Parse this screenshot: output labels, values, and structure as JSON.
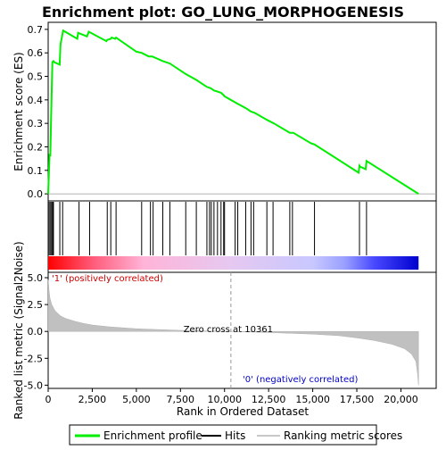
{
  "chart_data": {
    "type": "line",
    "title": "Enrichment plot: GO_LUNG_MORPHOGENESIS",
    "top_panel": {
      "ylabel": "Enrichment score (ES)",
      "ylim": [
        -0.03,
        0.73
      ],
      "yticks": [
        0.0,
        0.1,
        0.2,
        0.3,
        0.4,
        0.5,
        0.6,
        0.7
      ],
      "ytick_labels": [
        "0.0",
        "0.1",
        "0.2",
        "0.3",
        "0.4",
        "0.5",
        "0.6",
        "0.7"
      ],
      "series": [
        {
          "name": "Enrichment profile",
          "color": "#00ee00",
          "x": [
            0,
            80,
            120,
            160,
            200,
            240,
            300,
            350,
            650,
            700,
            850,
            1650,
            1700,
            2200,
            2300,
            3300,
            3350,
            3550,
            3600,
            3800,
            3850,
            5000,
            5300,
            5700,
            5900,
            6500,
            6900,
            7800,
            8400,
            9000,
            9200,
            9400,
            9600,
            9800,
            9950,
            10000,
            10700,
            11200,
            11500,
            11700,
            12400,
            12800,
            13700,
            13900,
            14900,
            15100,
            17600,
            17650,
            17700,
            18000,
            18050,
            21000
          ],
          "y": [
            0.0,
            0.17,
            0.16,
            0.31,
            0.44,
            0.56,
            0.565,
            0.56,
            0.55,
            0.635,
            0.695,
            0.66,
            0.685,
            0.67,
            0.69,
            0.65,
            0.655,
            0.66,
            0.665,
            0.66,
            0.665,
            0.605,
            0.6,
            0.585,
            0.585,
            0.565,
            0.555,
            0.51,
            0.485,
            0.455,
            0.45,
            0.44,
            0.435,
            0.43,
            0.42,
            0.415,
            0.385,
            0.365,
            0.35,
            0.345,
            0.315,
            0.3,
            0.26,
            0.26,
            0.215,
            0.21,
            0.09,
            0.12,
            0.115,
            0.105,
            0.14,
            0.0
          ]
        }
      ]
    },
    "hits_panel": {
      "series_name": "Hits",
      "hit_positions": [
        60,
        140,
        200,
        260,
        300,
        660,
        820,
        1750,
        2350,
        3350,
        3550,
        3850,
        5300,
        5800,
        5950,
        6500,
        6900,
        7800,
        8400,
        9000,
        9150,
        9250,
        9400,
        9600,
        9800,
        9950,
        10000,
        10600,
        10750,
        11200,
        11500,
        11650,
        12400,
        12750,
        13700,
        13850,
        15100,
        17650,
        18050
      ],
      "colorbar_stops": [
        "#ff0000",
        "#ff5a78",
        "#ffb4d8",
        "#e6c8f0",
        "#c8c8ff",
        "#9aa0ff",
        "#4848ff",
        "#0000d0"
      ],
      "colorbar_stop_x": [
        0,
        2500,
        5400,
        10300,
        15000,
        16800,
        18500,
        21000
      ]
    },
    "bottom_panel": {
      "xlabel": "Rank in Ordered Dataset",
      "ylabel": "Ranked list metric (Signal2Noise)",
      "xlim": [
        0,
        22000
      ],
      "ylim": [
        -5.3,
        5.5
      ],
      "xticks": [
        0,
        2500,
        5000,
        7500,
        10000,
        12500,
        15000,
        17500,
        20000
      ],
      "xtick_labels": [
        "0",
        "2,500",
        "5,000",
        "7,500",
        "10,000",
        "12,500",
        "15,000",
        "17,500",
        "20,000"
      ],
      "yticks": [
        -5.0,
        -2.5,
        0.0,
        2.5,
        5.0
      ],
      "ytick_labels": [
        "-5.0",
        "-2.5",
        "0.0",
        "2.5",
        "5.0"
      ],
      "series_name": "Ranking metric scores",
      "metric_x": [
        0,
        50,
        100,
        200,
        400,
        700,
        1000,
        1500,
        2000,
        2500,
        3500,
        5000,
        7500,
        10361,
        12500,
        15000,
        16500,
        17500,
        18500,
        19500,
        20200,
        20600,
        20850,
        20950,
        21000
      ],
      "metric_y": [
        4.8,
        3.8,
        3.1,
        2.5,
        1.9,
        1.45,
        1.2,
        0.95,
        0.75,
        0.6,
        0.42,
        0.25,
        0.1,
        0.0,
        -0.1,
        -0.25,
        -0.4,
        -0.6,
        -0.85,
        -1.2,
        -1.6,
        -2.1,
        -2.8,
        -4.0,
        -5.0
      ],
      "zero_cross_x": 10361,
      "zero_cross_label": "Zero cross at 10361",
      "pos_label": "'1' (positively correlated)",
      "neg_label": "'0' (negatively correlated)",
      "pos_label_color": "#cc0000",
      "neg_label_color": "#0000cc"
    },
    "legend": {
      "placement": "bottom",
      "entries": [
        {
          "label": "Enrichment profile",
          "color": "#00ee00",
          "kind": "line"
        },
        {
          "label": "Hits",
          "color": "#000000",
          "kind": "line"
        },
        {
          "label": "Ranking metric scores",
          "color": "#c8c8c8",
          "kind": "line"
        }
      ]
    }
  }
}
